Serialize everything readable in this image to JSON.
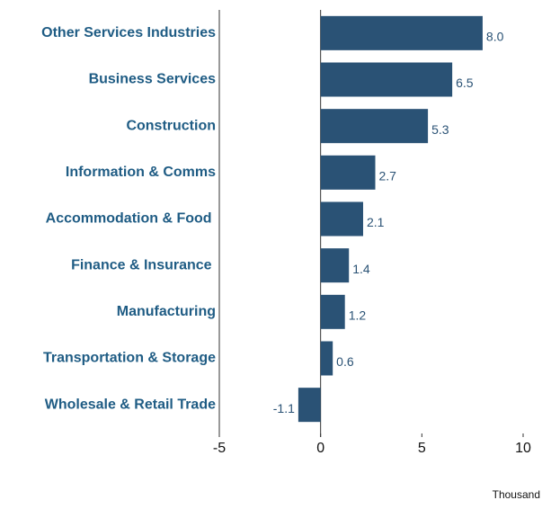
{
  "chart_data": {
    "type": "barh",
    "categories": [
      "Other Services Industries",
      "Business Services",
      "Construction",
      "Information & Comms",
      "Accommodation & Food ",
      "Finance & Insurance ",
      "Manufacturing",
      "Transportation & Storage",
      "Wholesale & Retail Trade"
    ],
    "values": [
      8.0,
      6.5,
      5.3,
      2.7,
      2.1,
      1.4,
      1.2,
      0.6,
      -1.1
    ],
    "value_labels": [
      "8.0",
      "6.5",
      "5.3",
      "2.7",
      "2.1",
      "1.4",
      "1.2",
      "0.6",
      "-1.1"
    ],
    "color": "#2a5275",
    "xlim": [
      -5,
      10
    ],
    "xticks": [
      -5,
      0,
      5,
      10
    ],
    "xlabel": "Thousand"
  }
}
